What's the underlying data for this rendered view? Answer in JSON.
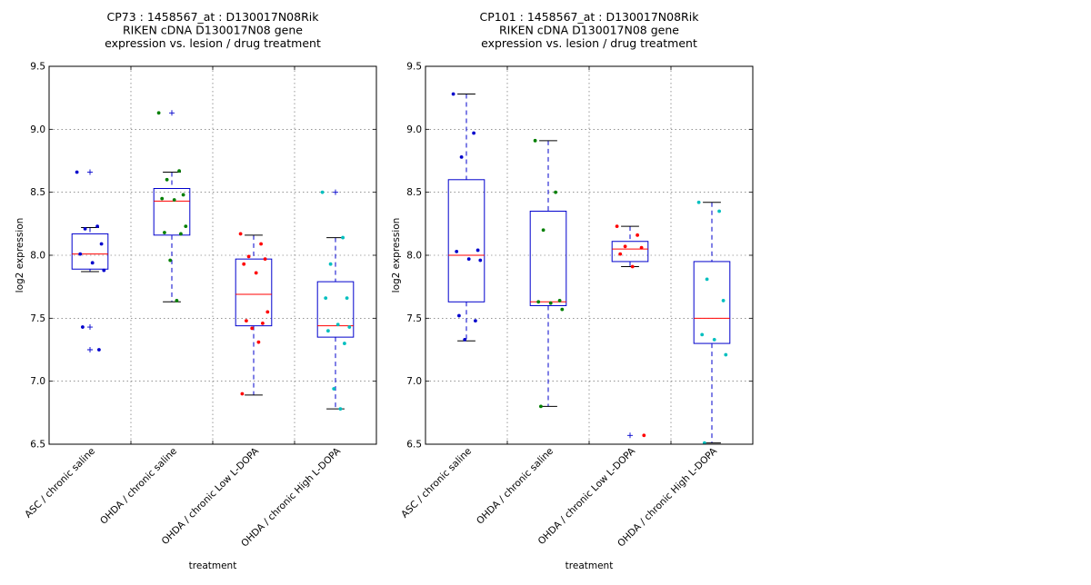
{
  "chart_data": [
    {
      "type": "box",
      "title_lines": [
        "CP73 : 1458567_at : D130017N08Rik",
        "RIKEN cDNA D130017N08 gene",
        "expression vs. lesion / drug treatment"
      ],
      "xlabel": "treatment",
      "ylabel": "log2 expression",
      "ylim": [
        6.5,
        9.5
      ],
      "yticks": [
        "6.5",
        "7.0",
        "7.5",
        "8.0",
        "8.5",
        "9.0",
        "9.5"
      ],
      "grid": true,
      "categories": [
        "ASC / chronic saline",
        "OHDA / chronic saline",
        "OHDA / chronic Low L-DOPA",
        "OHDA / chronic High L-DOPA"
      ],
      "colors": [
        "#0000cc",
        "#007f00",
        "#ff0000",
        "#00bfbf"
      ],
      "boxes": [
        {
          "whisker_low": 7.87,
          "q1": 7.89,
          "median": 8.01,
          "q3": 8.17,
          "whisker_high": 8.22,
          "outliers": [
            8.66,
            7.43,
            7.25
          ]
        },
        {
          "whisker_low": 7.63,
          "q1": 8.16,
          "median": 8.43,
          "q3": 8.53,
          "whisker_high": 8.66,
          "outliers": [
            9.13
          ]
        },
        {
          "whisker_low": 6.89,
          "q1": 7.44,
          "median": 7.69,
          "q3": 7.97,
          "whisker_high": 8.16,
          "outliers": []
        },
        {
          "whisker_low": 6.78,
          "q1": 7.35,
          "median": 7.44,
          "q3": 7.79,
          "whisker_high": 8.14,
          "outliers": [
            8.5
          ]
        }
      ],
      "points": [
        [
          8.66,
          8.23,
          8.21,
          8.09,
          8.01,
          7.94,
          7.88,
          7.43,
          7.25
        ],
        [
          9.13,
          8.67,
          8.6,
          8.48,
          8.45,
          8.44,
          8.23,
          8.18,
          8.17,
          7.96,
          7.64
        ],
        [
          8.17,
          8.09,
          7.99,
          7.97,
          7.93,
          7.86,
          7.55,
          7.48,
          7.46,
          7.42,
          7.31,
          6.9
        ],
        [
          8.5,
          8.14,
          7.93,
          7.66,
          7.66,
          7.45,
          7.43,
          7.4,
          7.3,
          6.94,
          6.78
        ]
      ]
    },
    {
      "type": "box",
      "title_lines": [
        "CP101 : 1458567_at : D130017N08Rik",
        "RIKEN cDNA D130017N08 gene",
        "expression vs. lesion / drug treatment"
      ],
      "xlabel": "treatment",
      "ylabel": "log2 expression",
      "ylim": [
        6.5,
        9.5
      ],
      "yticks": [
        "6.5",
        "7.0",
        "7.5",
        "8.0",
        "8.5",
        "9.0",
        "9.5"
      ],
      "grid": true,
      "categories": [
        "ASC / chronic saline",
        "OHDA / chronic saline",
        "OHDA / chronic Low L-DOPA",
        "OHDA / chronic High L-DOPA"
      ],
      "colors": [
        "#0000cc",
        "#007f00",
        "#ff0000",
        "#00bfbf"
      ],
      "boxes": [
        {
          "whisker_low": 7.32,
          "q1": 7.63,
          "median": 8.0,
          "q3": 8.6,
          "whisker_high": 9.28,
          "outliers": []
        },
        {
          "whisker_low": 6.8,
          "q1": 7.6,
          "median": 7.63,
          "q3": 8.35,
          "whisker_high": 8.91,
          "outliers": []
        },
        {
          "whisker_low": 7.91,
          "q1": 7.95,
          "median": 8.05,
          "q3": 8.11,
          "whisker_high": 8.23,
          "outliers": [
            6.57
          ]
        },
        {
          "whisker_low": 6.51,
          "q1": 7.3,
          "median": 7.5,
          "q3": 7.95,
          "whisker_high": 8.42,
          "outliers": []
        }
      ],
      "points": [
        [
          9.28,
          8.97,
          8.78,
          8.04,
          8.03,
          7.97,
          7.96,
          7.52,
          7.48,
          7.33
        ],
        [
          8.91,
          8.5,
          8.2,
          7.64,
          7.63,
          7.62,
          7.57,
          6.8
        ],
        [
          8.23,
          8.16,
          8.07,
          8.06,
          8.01,
          7.91,
          6.57
        ],
        [
          8.42,
          8.35,
          7.81,
          7.64,
          7.37,
          7.33,
          7.21,
          6.51
        ]
      ]
    }
  ]
}
